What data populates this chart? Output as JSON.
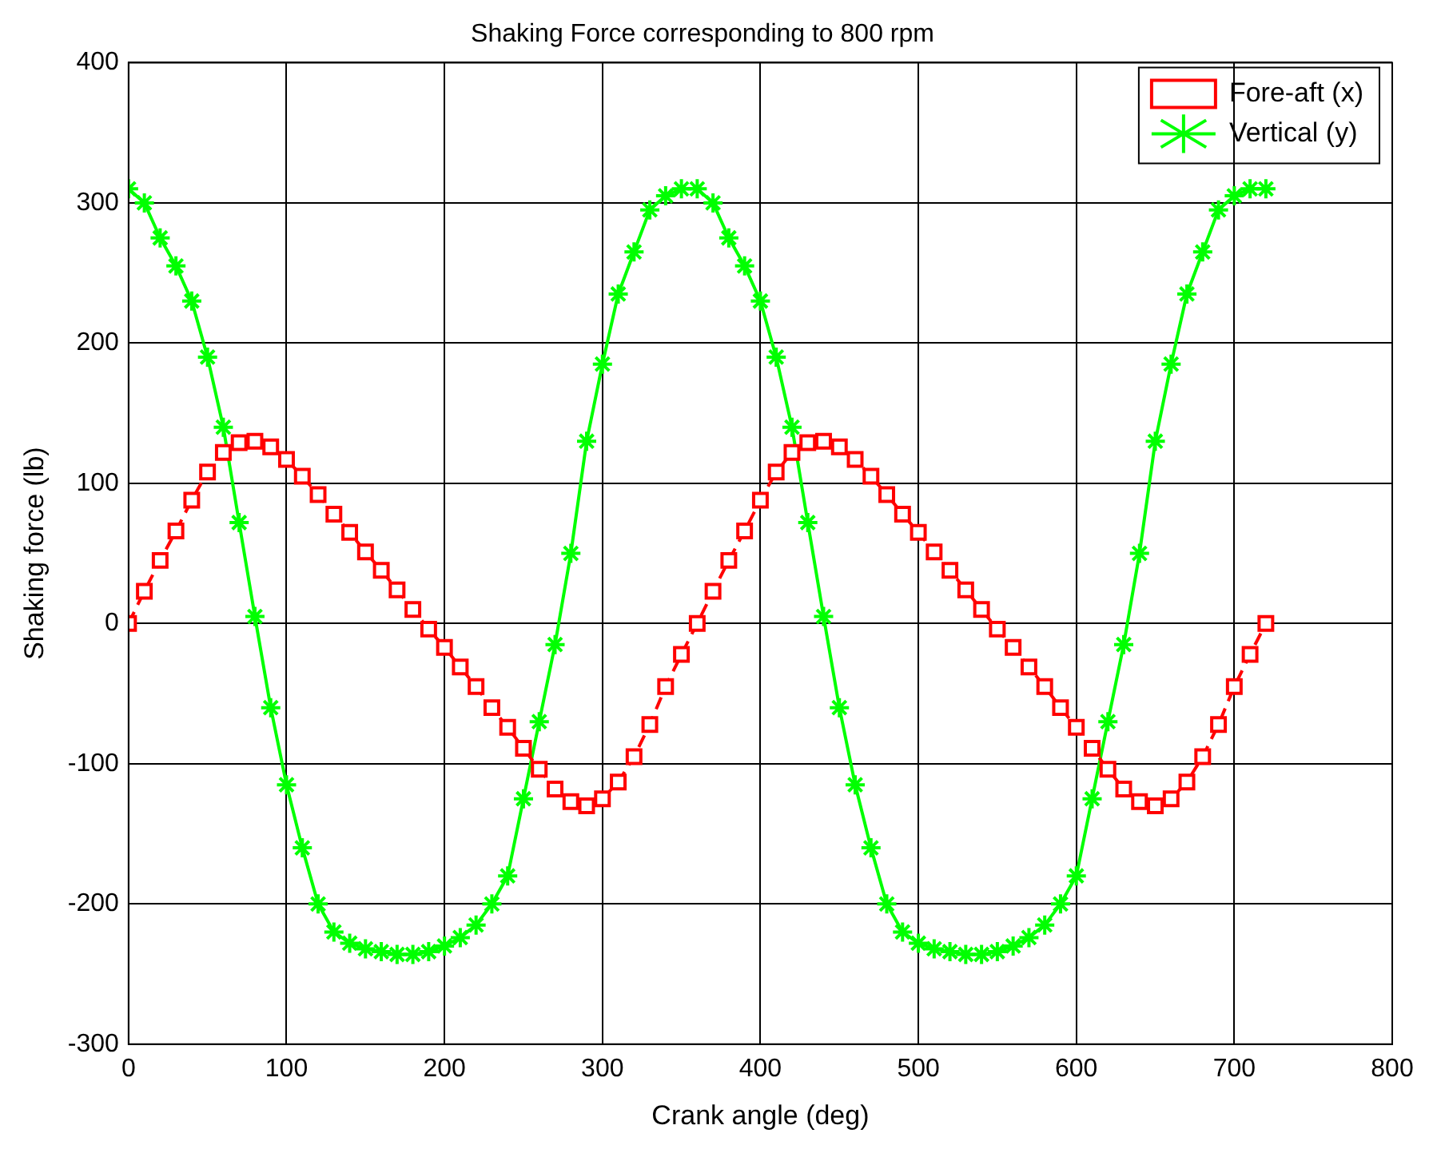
{
  "chart_data": {
    "type": "line",
    "title": "Shaking Force corresponding to 800 rpm",
    "xlabel": "Crank angle (deg)",
    "ylabel": "Shaking force (lb)",
    "x": [
      0,
      10,
      20,
      30,
      40,
      50,
      60,
      70,
      80,
      90,
      100,
      110,
      120,
      130,
      140,
      150,
      160,
      170,
      180,
      190,
      200,
      210,
      220,
      230,
      240,
      250,
      260,
      270,
      280,
      290,
      300,
      310,
      320,
      330,
      340,
      350,
      360,
      370,
      380,
      390,
      400,
      410,
      420,
      430,
      440,
      450,
      460,
      470,
      480,
      490,
      500,
      510,
      520,
      530,
      540,
      550,
      560,
      570,
      580,
      590,
      600,
      610,
      620,
      630,
      640,
      650,
      660,
      670,
      680,
      690,
      700,
      710,
      720
    ],
    "series": [
      {
        "name": "Fore-aft (x)",
        "color": "#ff0000",
        "marker": "square",
        "line_style": "dashed",
        "values": [
          0,
          23,
          45,
          66,
          88,
          108,
          122,
          129,
          130,
          126,
          117,
          105,
          92,
          78,
          65,
          51,
          38,
          24,
          10,
          -4,
          -17,
          -31,
          -45,
          -60,
          -74,
          -89,
          -104,
          -118,
          -127,
          -130,
          -125,
          -113,
          -95,
          -72,
          -45,
          -22,
          0,
          23,
          45,
          66,
          88,
          108,
          122,
          129,
          130,
          126,
          117,
          105,
          92,
          78,
          65,
          51,
          38,
          24,
          10,
          -4,
          -17,
          -31,
          -45,
          -60,
          -74,
          -89,
          -104,
          -118,
          -127,
          -130,
          -125,
          -113,
          -95,
          -72,
          -45,
          -22,
          0
        ]
      },
      {
        "name": "Vertical (y)",
        "color": "#00ff00",
        "marker": "cross",
        "line_style": "solid",
        "values": [
          310,
          300,
          275,
          255,
          230,
          190,
          140,
          72,
          5,
          -60,
          -115,
          -160,
          -200,
          -220,
          -228,
          -232,
          -234,
          -236,
          -236,
          -234,
          -230,
          -224,
          -215,
          -200,
          -180,
          -125,
          -70,
          -15,
          50,
          130,
          185,
          235,
          265,
          295,
          305,
          310,
          310,
          300,
          275,
          255,
          230,
          190,
          140,
          72,
          5,
          -60,
          -115,
          -160,
          -200,
          -220,
          -228,
          -232,
          -234,
          -236,
          -236,
          -234,
          -230,
          -224,
          -215,
          -200,
          -180,
          -125,
          -70,
          -15,
          50,
          130,
          185,
          235,
          265,
          295,
          305,
          310,
          310
        ]
      }
    ],
    "xlim": [
      0,
      800
    ],
    "xticks": [
      0,
      100,
      200,
      300,
      400,
      500,
      600,
      700,
      800
    ],
    "ylim": [
      -300,
      400
    ],
    "yticks": [
      -300,
      -200,
      -100,
      0,
      100,
      200,
      300,
      400
    ],
    "grid": true,
    "legend": "top right"
  }
}
